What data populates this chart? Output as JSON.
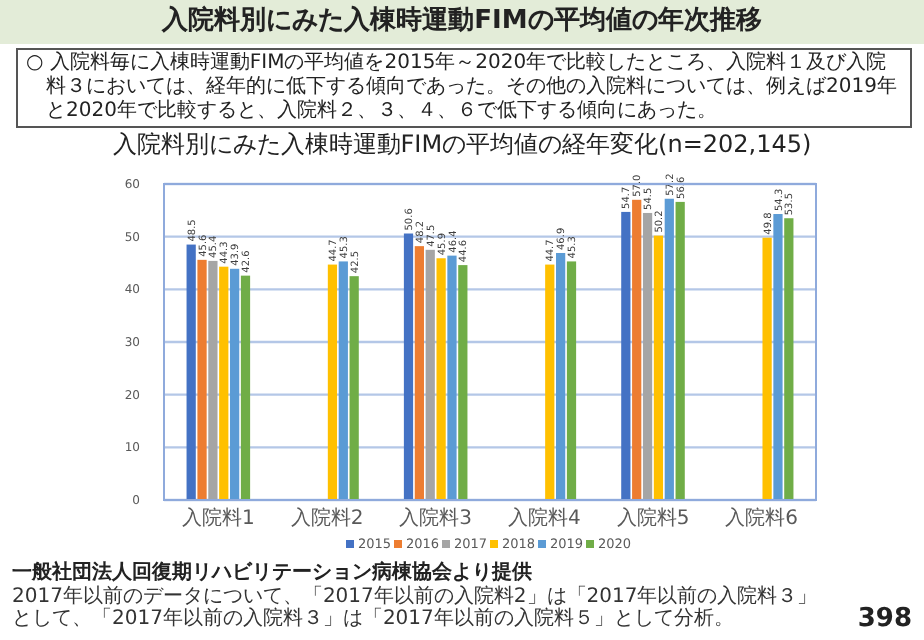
{
  "chart_data": {
    "type": "bar",
    "title": "入院料別にみた入棟時運動FIMの平均値の経年変化(n=202,145)",
    "categories": [
      "入院料1",
      "入院料2",
      "入院料3",
      "入院料4",
      "入院料5",
      "入院料6"
    ],
    "series": [
      {
        "name": "2015",
        "color": "#4472c4",
        "values": [
          48.5,
          null,
          50.6,
          null,
          54.7,
          null
        ]
      },
      {
        "name": "2016",
        "color": "#ed7d31",
        "values": [
          45.6,
          null,
          48.2,
          null,
          57.0,
          null
        ],
        "value_labels": [
          "45.6",
          null,
          "48.2",
          null,
          "57.0",
          null
        ]
      },
      {
        "name": "2017",
        "color": "#a5a5a5",
        "values": [
          45.4,
          null,
          47.5,
          null,
          54.5,
          null
        ]
      },
      {
        "name": "2018",
        "color": "#ffc000",
        "values": [
          44.3,
          44.7,
          45.9,
          44.7,
          50.2,
          49.8
        ]
      },
      {
        "name": "2019",
        "color": "#5b9bd5",
        "values": [
          43.9,
          45.3,
          46.4,
          46.9,
          57.2,
          54.3
        ]
      },
      {
        "name": "2020",
        "color": "#70ad47",
        "values": [
          42.6,
          42.5,
          44.6,
          45.3,
          56.6,
          53.5
        ]
      }
    ],
    "ylim": [
      0,
      60
    ],
    "yticks": [
      0,
      10,
      20,
      30,
      40,
      50,
      60
    ],
    "grid": "y",
    "legend": "bottom",
    "data_labels": true,
    "annotations": [
      "入院料別にみた入棟時運動FIMの平均値の年次推移",
      "○ 入院料毎に入棟時運動FIMの平均値を2015年～2020年で比較したところ、入院料１及び入院料３においては、経年的に低下する傾向であった。その他の入院料については、例えば2019年と2020年で比較すると、入院料２、３、４、６で低下する傾向にあった。",
      "一般社団法人回復期リハビリテーション病棟協会より提供",
      "2017年以前のデータについて、「2017年以前の入院料2」は「2017年以前の入院料３」として、「2017年以前の入院料３」は「2017年以前の入院料５」として分析。",
      "398"
    ]
  }
}
